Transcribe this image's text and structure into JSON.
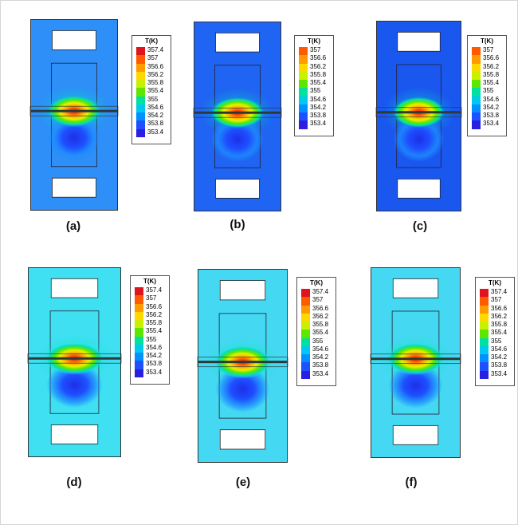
{
  "legend": {
    "title": "T(K)",
    "ticks": [
      "357.4",
      "357",
      "356.6",
      "356.2",
      "355.8",
      "355.4",
      "355",
      "354.6",
      "354.2",
      "353.8",
      "353.4"
    ],
    "scale_colors": [
      "#e0141c",
      "#ff5a00",
      "#ff9a00",
      "#ffd800",
      "#c8f000",
      "#5fe600",
      "#00e0a0",
      "#00c8f0",
      "#0090ff",
      "#1e50ff",
      "#2a1ee0"
    ]
  },
  "panels": [
    {
      "label": "(a)",
      "background_color": "#2d8ff7",
      "legend_ticks": [
        "357.4",
        "357",
        "356.6",
        "356.2",
        "355.8",
        "355.4",
        "355",
        "354.6",
        "354.2",
        "353.8",
        "353.4"
      ]
    },
    {
      "label": "(b)",
      "background_color": "#1f64f2",
      "legend_ticks": [
        "357",
        "356.6",
        "356.2",
        "355.8",
        "355.4",
        "355",
        "354.6",
        "354.2",
        "353.8",
        "353.4"
      ]
    },
    {
      "label": "(c)",
      "background_color": "#1a57ef",
      "legend_ticks": [
        "357",
        "356.6",
        "356.2",
        "355.8",
        "355.4",
        "355",
        "354.6",
        "354.2",
        "353.8",
        "353.4"
      ]
    },
    {
      "label": "(d)",
      "background_color": "#3fe0f2",
      "legend_ticks": [
        "357.4",
        "357",
        "356.6",
        "356.2",
        "355.8",
        "355.4",
        "355",
        "354.6",
        "354.2",
        "353.8",
        "353.4"
      ]
    },
    {
      "label": "(e)",
      "background_color": "#45d8f2",
      "legend_ticks": [
        "357.4",
        "357",
        "356.6",
        "356.2",
        "355.8",
        "355.4",
        "355",
        "354.6",
        "354.2",
        "353.8",
        "353.4"
      ]
    },
    {
      "label": "(f)",
      "background_color": "#45d8f2",
      "legend_ticks": [
        "357.4",
        "357",
        "356.6",
        "356.2",
        "355.8",
        "355.4",
        "355",
        "354.6",
        "354.2",
        "353.8",
        "353.4"
      ]
    }
  ]
}
